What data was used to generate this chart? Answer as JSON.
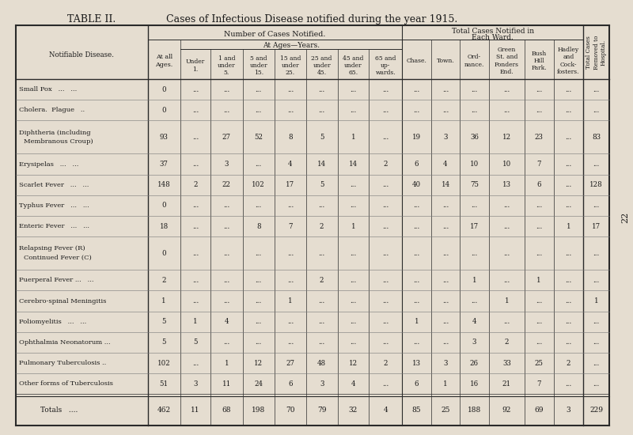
{
  "title_left": "TABLE II.",
  "title_right": "Cases of Infectious Disease notified during the year 1915.",
  "bg_color": "#e5ddd0",
  "rows": [
    [
      "Small Pox   ...   ...",
      "0",
      "...",
      "...",
      "...",
      "...",
      "...",
      "...",
      "...",
      "...",
      "...",
      "...",
      "...",
      "...",
      "...",
      "..."
    ],
    [
      "Cholera.  Plague   ..",
      "0",
      "...",
      "...",
      "...",
      "...",
      "...",
      "...",
      "...",
      "...",
      "...",
      "...",
      "...",
      "...",
      "...",
      "..."
    ],
    [
      "Diphtheria (including\nMembranous Croup)",
      "93",
      "...",
      "27",
      "52",
      "8",
      "5",
      "1",
      "...",
      "19",
      "3",
      "36",
      "12",
      "23",
      "...",
      "83"
    ],
    [
      "Erysipelas   ...   ...",
      "37",
      "...",
      "3",
      "...",
      "4",
      "14",
      "14",
      "2",
      "6",
      "4",
      "10",
      "10",
      "7",
      "...",
      "..."
    ],
    [
      "Scarlet Fever   ...   ...",
      "148",
      "2",
      "22",
      "102",
      "17",
      "5",
      "...",
      "...",
      "40",
      "14",
      "75",
      "13",
      "6",
      "...",
      "128"
    ],
    [
      "Typhus Fever   ...   ...",
      "0",
      "...",
      "...",
      "...",
      "...",
      "...",
      "...",
      "...",
      "...",
      "...",
      "...",
      "...",
      "...",
      "...",
      "..."
    ],
    [
      "Enteric Fever   ...   ...",
      "18",
      "...",
      "...",
      "8",
      "7",
      "2",
      "1",
      "...",
      "...",
      "...",
      "17",
      "...",
      "...",
      "1",
      "17"
    ],
    [
      "Relapsing Fever (R)\nContinued Fever (C)",
      "0",
      "...",
      "...",
      "...",
      "...",
      "...",
      "...",
      "...",
      "...",
      "...",
      "...",
      "...",
      "...",
      "...",
      "..."
    ],
    [
      "Puerperal Fever ...   ...",
      "2",
      "...",
      "...",
      "...",
      "...",
      "2",
      "...",
      "...",
      "...",
      "...",
      "1",
      "...",
      "1",
      "...",
      "..."
    ],
    [
      "Cerebro-spinal Meningitis",
      "1",
      "...",
      "...",
      "...",
      "1",
      "...",
      "...",
      "...",
      "...",
      "...",
      "...",
      "1",
      "...",
      "...",
      "1"
    ],
    [
      "Poliomyelitis   ...   ...",
      "5",
      "1",
      "4",
      "...",
      "...",
      "...",
      "...",
      "...",
      "1",
      "...",
      "4",
      "...",
      "...",
      "...",
      "..."
    ],
    [
      "Ophthalmia Neonatorum ...",
      "5",
      "5",
      "...",
      "...",
      "...",
      "...",
      "...",
      "...",
      "...",
      "...",
      "3",
      "2",
      "...",
      "...",
      "..."
    ],
    [
      "Pulmonary Tuberculosis ..",
      "102",
      "...",
      "1",
      "12",
      "27",
      "48",
      "12",
      "2",
      "13",
      "3",
      "26",
      "33",
      "25",
      "2",
      "..."
    ],
    [
      "Other forms of Tuberculosis",
      "51",
      "3",
      "11",
      "24",
      "6",
      "3",
      "4",
      "...",
      "6",
      "1",
      "16",
      "21",
      "7",
      "...",
      "..."
    ]
  ],
  "totals_row": [
    "Totals   ....",
    "462",
    "11",
    "68",
    "198",
    "70",
    "79",
    "32",
    "4",
    "85",
    "25",
    "188",
    "92",
    "69",
    "3",
    "229"
  ],
  "col_headers_line3": [
    "",
    "At all\nAges.",
    "Under\n1.",
    "1 and\nunder\n5.",
    "5 and\nunder\n15.",
    "15 and\nunder\n25.",
    "25 and\nunder\n45.",
    "45 and\nunder\n65.",
    "65 and\nup-\nwards.",
    "Chase.",
    "Town.",
    "Ord-\nnance.",
    "Green\nSt. and\nPonders\nEnd.",
    "Bush\nHill\nPark.",
    "Hadley\nand\nCock-\nfosters.",
    ""
  ],
  "text_color": "#1a1a1a",
  "line_color": "#2a2a2a",
  "page_number": "22"
}
